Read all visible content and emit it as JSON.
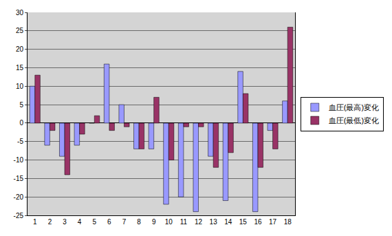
{
  "chart_data": {
    "type": "bar",
    "categories": [
      "1",
      "2",
      "3",
      "4",
      "5",
      "6",
      "7",
      "8",
      "9",
      "10",
      "11",
      "12",
      "13",
      "14",
      "15",
      "16",
      "17",
      "18"
    ],
    "series": [
      {
        "name": "血圧(最高)変化",
        "color": "#9999ff",
        "values": [
          10,
          -6,
          -9,
          -6,
          0,
          16,
          5,
          -7,
          -7,
          -22,
          -20,
          -24,
          -9,
          -21,
          14,
          -24,
          -2,
          6
        ]
      },
      {
        "name": "血圧(最低)変化",
        "color": "#993366",
        "values": [
          13,
          -2,
          -14,
          -3,
          2,
          -2,
          -1,
          -7,
          7,
          -10,
          -1,
          -1,
          -12,
          -8,
          8,
          -12,
          -7,
          26
        ]
      }
    ],
    "ylim": [
      -25,
      30
    ],
    "yticks": [
      -25,
      -20,
      -15,
      -10,
      -5,
      0,
      5,
      10,
      15,
      20,
      25,
      30
    ],
    "grid": true,
    "legend": "right"
  }
}
